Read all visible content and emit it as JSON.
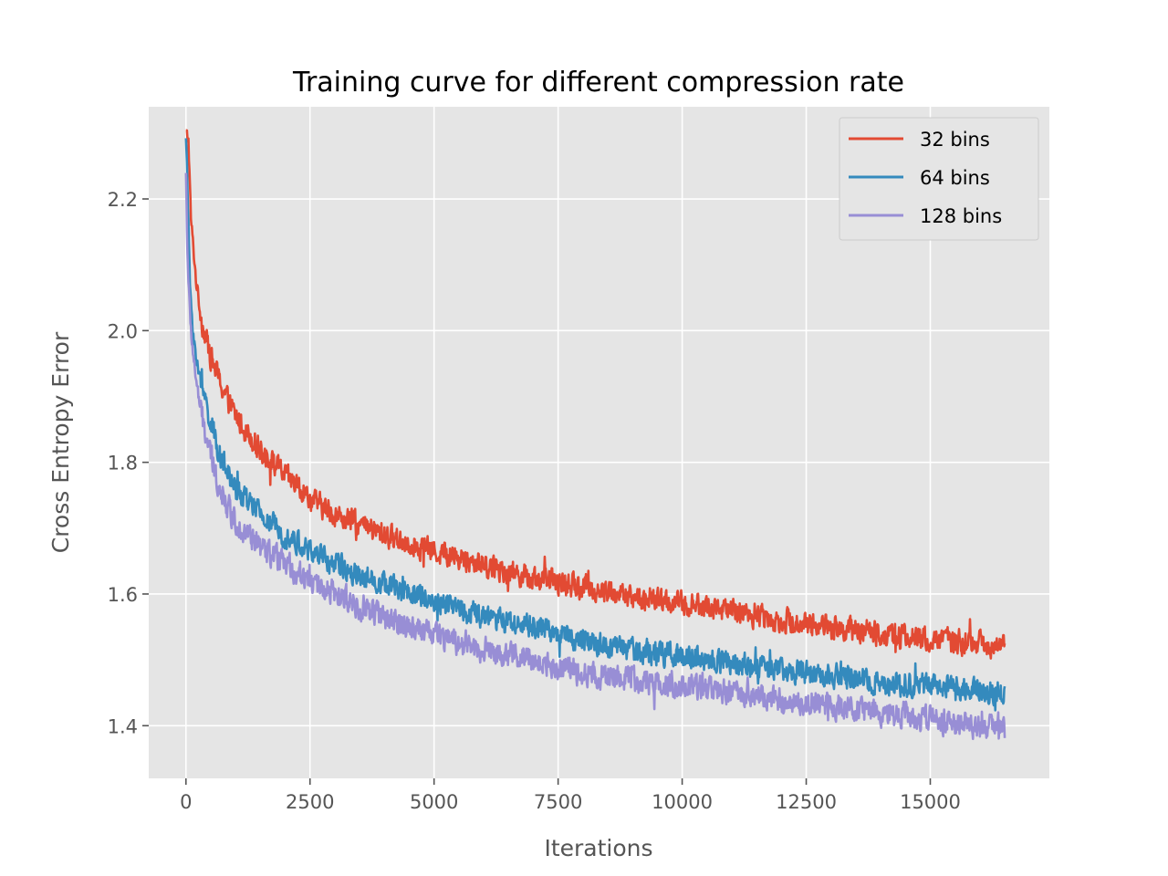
{
  "chart_data": {
    "type": "line",
    "title": "Training curve for different compression rate",
    "xlabel": "Iterations",
    "ylabel": "Cross Entropy Error",
    "xlim": [
      -750,
      17400
    ],
    "ylim": [
      1.32,
      2.34
    ],
    "xticks": [
      0,
      2500,
      5000,
      7500,
      10000,
      12500,
      15000
    ],
    "xtick_labels": [
      "0",
      "2500",
      "5000",
      "7500",
      "10000",
      "12500",
      "15000"
    ],
    "yticks": [
      1.4,
      1.6,
      1.8,
      2.0,
      2.2
    ],
    "ytick_labels": [
      "1.4",
      "1.6",
      "1.8",
      "2.0",
      "2.2"
    ],
    "grid": true,
    "legend_position": "top-right",
    "background_color": "#e5e5e5",
    "series": [
      {
        "name": "32 bins",
        "color": "#e24a33",
        "noise": 0.016,
        "x": [
          0,
          50,
          100,
          200,
          300,
          500,
          750,
          1000,
          1500,
          2000,
          2500,
          3000,
          4000,
          5000,
          6000,
          7000,
          8000,
          9000,
          10000,
          11000,
          12000,
          13000,
          14000,
          15000,
          16000,
          16500
        ],
        "y": [
          2.3,
          2.29,
          2.17,
          2.08,
          2.02,
          1.96,
          1.91,
          1.87,
          1.82,
          1.78,
          1.745,
          1.72,
          1.69,
          1.665,
          1.645,
          1.625,
          1.61,
          1.595,
          1.585,
          1.575,
          1.56,
          1.55,
          1.54,
          1.53,
          1.525,
          1.52
        ]
      },
      {
        "name": "64 bins",
        "color": "#348abd",
        "noise": 0.016,
        "x": [
          0,
          30,
          80,
          150,
          250,
          400,
          600,
          800,
          1000,
          1500,
          2000,
          2500,
          3000,
          4000,
          5000,
          6000,
          7000,
          8000,
          9000,
          10000,
          11000,
          12000,
          13000,
          14000,
          15000,
          16000,
          16500
        ],
        "y": [
          2.3,
          2.22,
          2.07,
          1.99,
          1.94,
          1.89,
          1.83,
          1.79,
          1.76,
          1.72,
          1.69,
          1.665,
          1.645,
          1.615,
          1.59,
          1.565,
          1.55,
          1.53,
          1.515,
          1.505,
          1.495,
          1.485,
          1.475,
          1.465,
          1.46,
          1.455,
          1.45
        ]
      },
      {
        "name": "128 bins",
        "color": "#988ed5",
        "noise": 0.017,
        "x": [
          0,
          30,
          80,
          150,
          250,
          400,
          600,
          800,
          1000,
          1500,
          2000,
          2500,
          3000,
          4000,
          5000,
          6000,
          7000,
          8000,
          9000,
          10000,
          11000,
          12000,
          13000,
          14000,
          15000,
          16000,
          16500
        ],
        "y": [
          2.24,
          2.12,
          2.02,
          1.96,
          1.9,
          1.84,
          1.78,
          1.74,
          1.71,
          1.67,
          1.645,
          1.62,
          1.6,
          1.565,
          1.54,
          1.515,
          1.5,
          1.48,
          1.47,
          1.46,
          1.45,
          1.44,
          1.43,
          1.42,
          1.41,
          1.4,
          1.39
        ]
      }
    ]
  }
}
